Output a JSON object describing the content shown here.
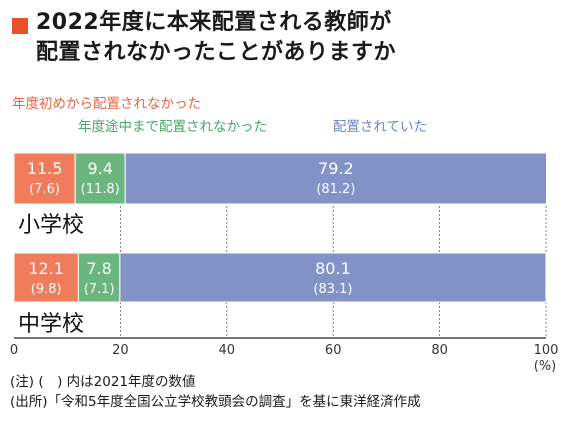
{
  "title": {
    "line1": "2022年度に本来配置される教師が",
    "line2": "配置されなかったことがありますか"
  },
  "colors": {
    "accent": "#e8502a",
    "series": [
      "#f07c5c",
      "#6bb57e",
      "#8393c8"
    ],
    "legend": [
      "#e8653f",
      "#4aa56a",
      "#6f83c4"
    ]
  },
  "chart_data": {
    "type": "bar",
    "orientation": "horizontal-stacked",
    "unit": "(%)",
    "xlim": [
      0,
      100
    ],
    "ticks": [
      0,
      20,
      40,
      60,
      80,
      100
    ],
    "categories": [
      "小学校",
      "中学校"
    ],
    "series": [
      {
        "name": "年度初めから配置されなかった",
        "values": [
          11.5,
          12.1
        ],
        "prev": [
          7.6,
          9.8
        ]
      },
      {
        "name": "年度途中まで配置されなかった",
        "values": [
          9.4,
          7.8
        ],
        "prev": [
          11.8,
          7.1
        ]
      },
      {
        "name": "配置されていた",
        "values": [
          79.2,
          80.1
        ],
        "prev": [
          81.2,
          83.1
        ]
      }
    ],
    "labels": [
      [
        [
          "11.5",
          "(7.6)"
        ],
        [
          "9.4",
          "(11.8)"
        ],
        [
          "79.2",
          "(81.2)"
        ]
      ],
      [
        [
          "12.1",
          "(9.8)"
        ],
        [
          "7.8",
          "(7.1)"
        ],
        [
          "80.1",
          "(83.1)"
        ]
      ]
    ],
    "grid": "dashed vertical",
    "legend": "top, above each segment"
  },
  "notes": [
    "(注) (　) 内は2021年度の数値",
    "(出所)「令和5年度全国公立学校教頭会の調査」を基に東洋経済作成"
  ]
}
